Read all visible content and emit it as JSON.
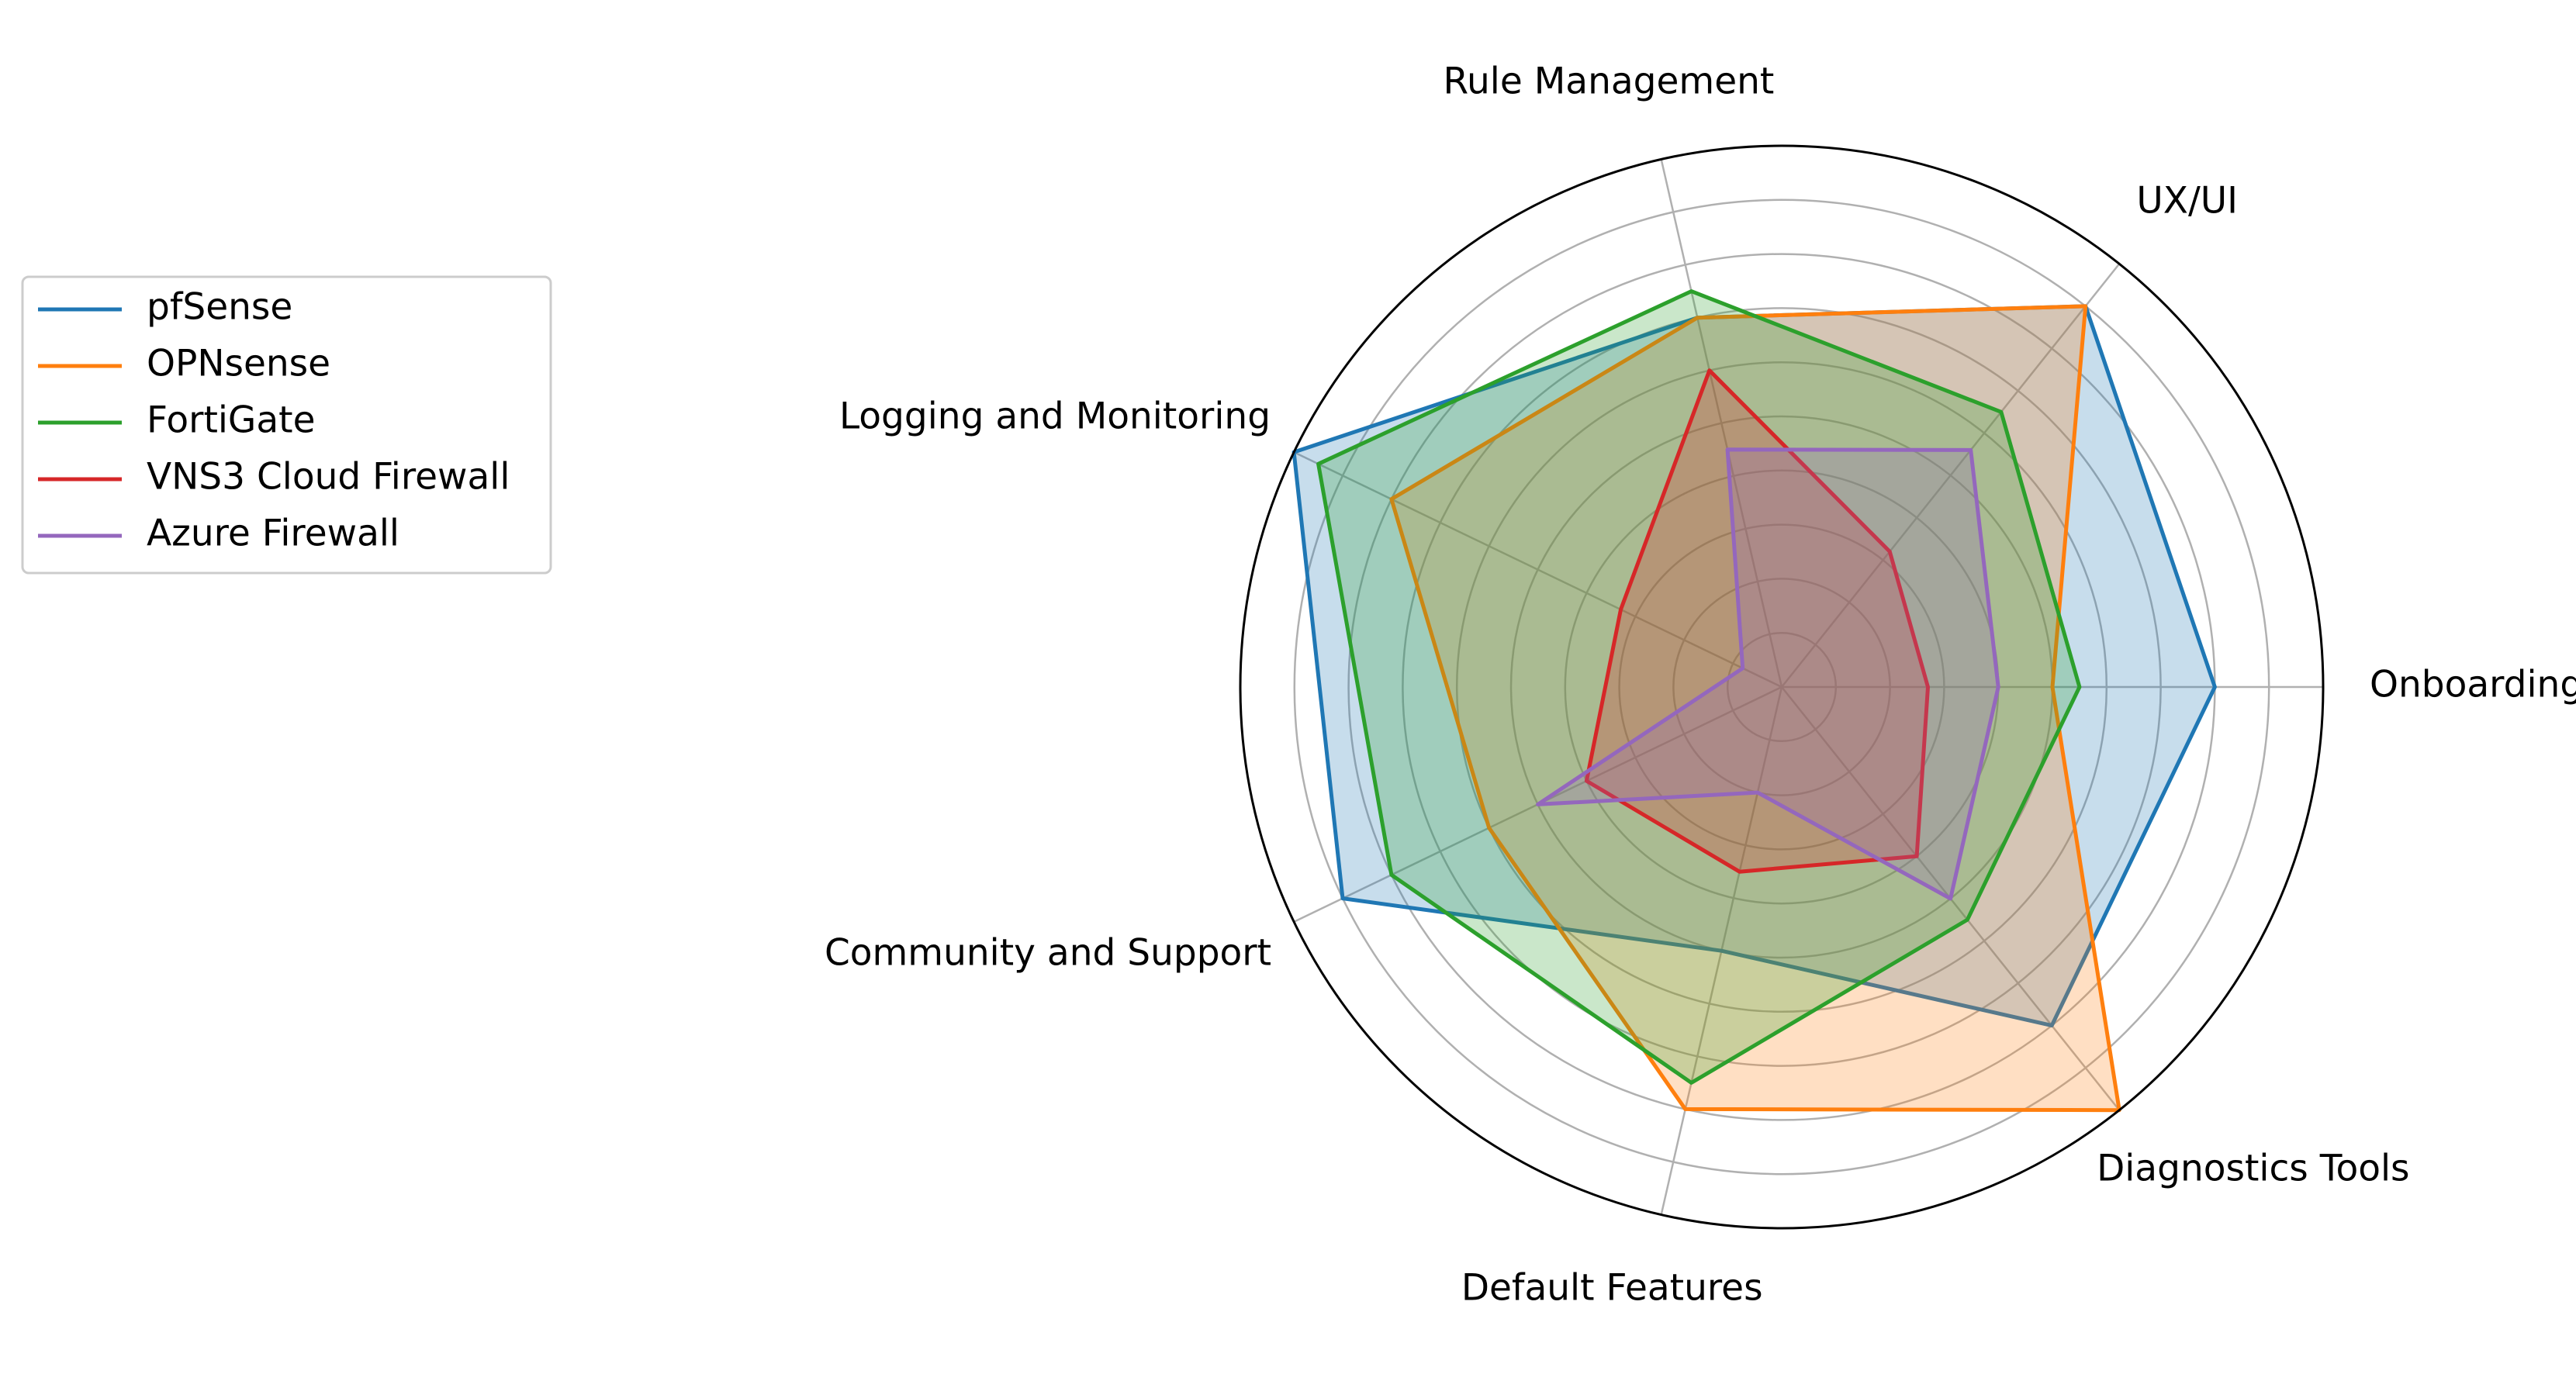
{
  "chart_data": {
    "type": "radar",
    "categories": [
      "Onboarding",
      "UX/UI",
      "Rule Management",
      "Logging and Monitoring",
      "Community and Support",
      "Default Features",
      "Diagnostics Tools"
    ],
    "rmax": 10,
    "rticks": [
      1,
      2,
      3,
      4,
      5,
      6,
      7,
      8,
      9
    ],
    "grid": true,
    "legend_position": "outside-left",
    "series": [
      {
        "name": "pfSense",
        "color": "#1f77b4",
        "values": [
          8,
          9,
          7,
          10,
          9,
          5,
          8
        ]
      },
      {
        "name": "OPNsense",
        "color": "#ff7f0e",
        "values": [
          5,
          9,
          7,
          8,
          6,
          8,
          10
        ]
      },
      {
        "name": "FortiGate",
        "color": "#2ca02c",
        "values": [
          5.5,
          6.5,
          7.5,
          9.5,
          8,
          7.5,
          5.5
        ]
      },
      {
        "name": "VNS3 Cloud Firewall",
        "color": "#d62728",
        "values": [
          2.7,
          3.2,
          6,
          3.3,
          4,
          3.5,
          4
        ]
      },
      {
        "name": "Azure Firewall",
        "color": "#9467bd",
        "values": [
          4,
          5.6,
          4.5,
          0.8,
          5,
          2,
          5
        ]
      }
    ]
  }
}
